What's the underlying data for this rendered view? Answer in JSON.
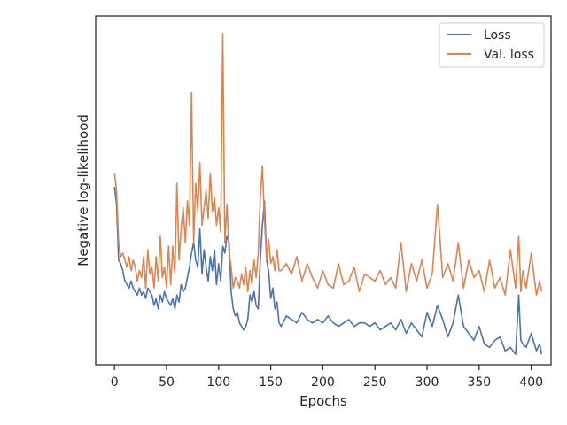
{
  "chart_data": {
    "type": "line",
    "title": "",
    "xlabel": "Epochs",
    "ylabel": "Negative log-likelihood",
    "xlim": [
      -18,
      419
    ],
    "ylim": [
      0,
      100
    ],
    "xticks": [
      0,
      50,
      100,
      150,
      200,
      250,
      300,
      350,
      400
    ],
    "yticks_shown": false,
    "grid": false,
    "legend_position": "top-right",
    "series": [
      {
        "name": "Loss",
        "color": "#4c72b0",
        "x": [
          0,
          2,
          4,
          6,
          8,
          10,
          12,
          14,
          16,
          18,
          20,
          22,
          24,
          26,
          28,
          30,
          32,
          34,
          36,
          38,
          40,
          42,
          44,
          46,
          48,
          50,
          52,
          54,
          56,
          58,
          60,
          62,
          64,
          66,
          68,
          70,
          72,
          74,
          76,
          78,
          80,
          82,
          84,
          86,
          88,
          90,
          92,
          94,
          96,
          98,
          100,
          102,
          104,
          106,
          108,
          110,
          112,
          114,
          116,
          118,
          120,
          122,
          124,
          126,
          128,
          130,
          132,
          134,
          136,
          138,
          140,
          142,
          144,
          146,
          148,
          150,
          152,
          154,
          156,
          158,
          160,
          165,
          170,
          175,
          180,
          185,
          190,
          195,
          200,
          205,
          210,
          215,
          220,
          225,
          230,
          235,
          240,
          245,
          250,
          255,
          260,
          265,
          270,
          275,
          280,
          285,
          290,
          295,
          300,
          305,
          310,
          315,
          320,
          325,
          330,
          335,
          340,
          345,
          350,
          355,
          360,
          365,
          370,
          375,
          380,
          385,
          388,
          390,
          392,
          395,
          400,
          405,
          408,
          410
        ],
        "values": [
          51,
          46,
          30,
          29,
          27,
          24,
          23,
          22,
          24,
          22,
          21,
          20,
          22,
          20,
          21,
          19,
          22,
          21,
          20,
          17,
          19,
          16,
          20,
          18,
          21,
          19,
          18,
          17,
          19,
          16,
          20,
          18,
          23,
          21,
          22,
          25,
          28,
          32,
          35,
          30,
          28,
          39,
          26,
          33,
          28,
          24,
          31,
          27,
          33,
          23,
          29,
          24,
          34,
          32,
          37,
          35,
          21,
          16,
          14,
          15,
          12,
          11,
          10,
          11,
          13,
          20,
          18,
          21,
          17,
          16,
          30,
          40,
          47,
          30,
          27,
          19,
          22,
          16,
          18,
          12,
          11,
          14,
          13,
          12,
          15,
          13,
          12,
          13,
          12,
          14,
          12,
          11,
          12,
          13,
          11,
          12,
          12,
          11,
          12,
          10,
          11,
          12,
          10,
          13,
          9,
          12,
          10,
          8,
          15,
          11,
          17,
          13,
          8,
          12,
          20,
          11,
          9,
          7,
          11,
          6,
          5,
          7,
          8,
          4,
          5,
          3,
          20,
          7,
          6,
          5,
          9,
          4,
          6,
          3
        ]
      },
      {
        "name": "Val. loss",
        "color": "#dd8452",
        "x": [
          0,
          2,
          4,
          6,
          8,
          10,
          12,
          14,
          16,
          18,
          20,
          22,
          24,
          26,
          28,
          30,
          32,
          34,
          36,
          38,
          40,
          42,
          44,
          46,
          48,
          50,
          52,
          54,
          56,
          58,
          60,
          62,
          64,
          66,
          68,
          70,
          72,
          74,
          76,
          78,
          80,
          82,
          84,
          86,
          88,
          90,
          92,
          94,
          96,
          98,
          100,
          102,
          104,
          106,
          108,
          110,
          112,
          114,
          116,
          118,
          120,
          122,
          124,
          126,
          128,
          130,
          132,
          134,
          136,
          138,
          140,
          142,
          144,
          146,
          148,
          150,
          152,
          154,
          156,
          158,
          160,
          165,
          170,
          175,
          180,
          185,
          190,
          195,
          200,
          205,
          210,
          215,
          220,
          225,
          230,
          235,
          240,
          245,
          250,
          255,
          260,
          265,
          270,
          275,
          280,
          285,
          290,
          295,
          300,
          305,
          310,
          315,
          320,
          325,
          330,
          335,
          340,
          345,
          350,
          355,
          360,
          365,
          370,
          375,
          380,
          385,
          388,
          390,
          392,
          395,
          400,
          405,
          408,
          410
        ],
        "values": [
          55,
          50,
          35,
          31,
          32,
          30,
          28,
          31,
          27,
          30,
          28,
          24,
          27,
          25,
          31,
          22,
          33,
          26,
          28,
          22,
          31,
          24,
          37,
          25,
          28,
          22,
          34,
          23,
          34,
          26,
          52,
          30,
          39,
          45,
          35,
          47,
          40,
          78,
          35,
          52,
          44,
          58,
          40,
          45,
          50,
          42,
          55,
          44,
          48,
          40,
          45,
          38,
          95,
          35,
          46,
          32,
          28,
          22,
          25,
          24,
          22,
          26,
          23,
          28,
          21,
          27,
          23,
          30,
          25,
          32,
          48,
          57,
          42,
          30,
          36,
          29,
          31,
          27,
          33,
          27,
          27,
          29,
          26,
          31,
          24,
          29,
          25,
          22,
          27,
          23,
          22,
          29,
          23,
          24,
          28,
          21,
          26,
          25,
          24,
          27,
          23,
          25,
          22,
          35,
          21,
          29,
          24,
          30,
          22,
          26,
          46,
          25,
          29,
          24,
          35,
          22,
          30,
          25,
          27,
          21,
          30,
          22,
          25,
          20,
          33,
          22,
          37,
          21,
          27,
          22,
          32,
          20,
          24,
          21
        ]
      }
    ]
  }
}
